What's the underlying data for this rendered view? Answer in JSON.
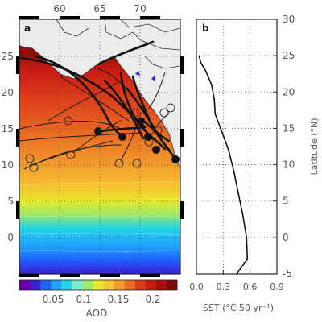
{
  "panel_a": {
    "label": "a",
    "lon_ticks": [
      "60",
      "65",
      "70"
    ],
    "lat_ticks": [
      "25",
      "20",
      "15",
      "10",
      "5",
      "0"
    ],
    "colorbar": {
      "ticks": [
        "0.05",
        "0.1",
        "0.15",
        "0.2"
      ],
      "label": "AOD",
      "colors": [
        "#6a00a8",
        "#3b1fd6",
        "#2060ff",
        "#1fa0ff",
        "#21d4e8",
        "#7fe8d0",
        "#9ee86a",
        "#e8e82a",
        "#f6c531",
        "#f29b2d",
        "#ea6a22",
        "#dc3b1a",
        "#c81a12",
        "#a80e0c",
        "#7a0808"
      ]
    },
    "map_data": {
      "lon_range": [
        55,
        75
      ],
      "lat_range": [
        -5,
        30
      ],
      "aod_bands_south_to_north": [
        {
          "lat": -5,
          "aod": 0.05
        },
        {
          "lat": -2,
          "aod": 0.07
        },
        {
          "lat": 0,
          "aod": 0.09
        },
        {
          "lat": 2,
          "aod": 0.1
        },
        {
          "lat": 4,
          "aod": 0.12
        },
        {
          "lat": 6,
          "aod": 0.14
        },
        {
          "lat": 8,
          "aod": 0.16
        },
        {
          "lat": 10,
          "aod": 0.18
        },
        {
          "lat": 13,
          "aod": 0.2
        },
        {
          "lat": 16,
          "aod": 0.22
        }
      ]
    }
  },
  "panel_b": {
    "label": "b",
    "chart_data": {
      "type": "line",
      "xlabel": "SST (°C 50 yr⁻¹)",
      "ylabel": "Latitude (°N)",
      "xlim": [
        0.0,
        0.9
      ],
      "ylim": [
        -5,
        30
      ],
      "xticks": [
        "0.0",
        "0.3",
        "0.6",
        "0.9"
      ],
      "yticks": [
        "30",
        "25",
        "20",
        "15",
        "10",
        "5",
        "0",
        "-5"
      ],
      "grid": true,
      "series": [
        {
          "points": [
            {
              "x": 0.45,
              "y": -5
            },
            {
              "x": 0.57,
              "y": -3
            },
            {
              "x": 0.56,
              "y": 0
            },
            {
              "x": 0.52,
              "y": 3
            },
            {
              "x": 0.47,
              "y": 6
            },
            {
              "x": 0.42,
              "y": 9
            },
            {
              "x": 0.36,
              "y": 12
            },
            {
              "x": 0.27,
              "y": 15
            },
            {
              "x": 0.21,
              "y": 17
            },
            {
              "x": 0.2,
              "y": 19
            },
            {
              "x": 0.17,
              "y": 21
            },
            {
              "x": 0.1,
              "y": 23
            },
            {
              "x": 0.05,
              "y": 24
            },
            {
              "x": 0.03,
              "y": 25
            }
          ]
        }
      ]
    }
  }
}
